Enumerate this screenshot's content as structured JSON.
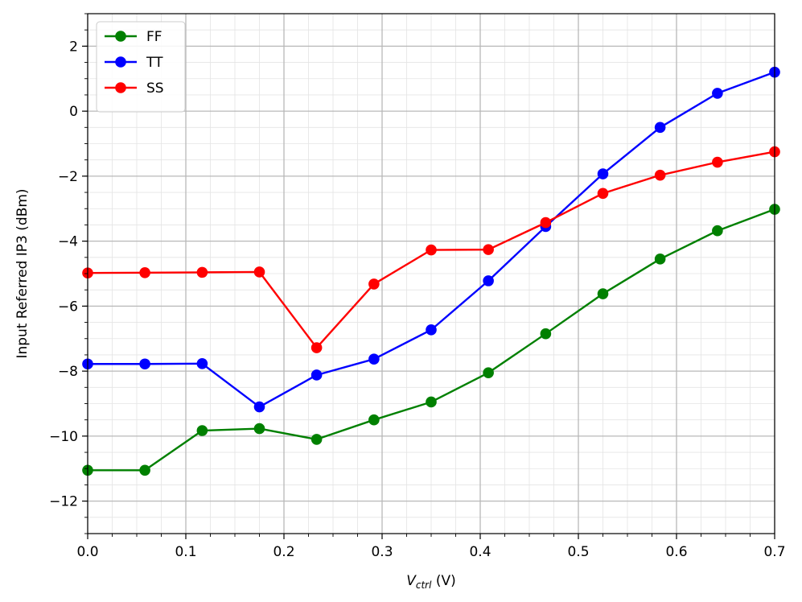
{
  "chart_data": {
    "type": "line",
    "title": "",
    "xlabel_main": "V",
    "xlabel_sub": "ctrl",
    "xlabel_unit": " (V)",
    "ylabel": "Input Referred IP3 (dBm)",
    "xlim": [
      0.0,
      0.7
    ],
    "ylim": [
      -13,
      3
    ],
    "xticks": [
      0.0,
      0.1,
      0.2,
      0.3,
      0.4,
      0.5,
      0.6,
      0.7
    ],
    "xtick_labels": [
      "0.0",
      "0.1",
      "0.2",
      "0.3",
      "0.4",
      "0.5",
      "0.6",
      "0.7"
    ],
    "yticks": [
      -12,
      -10,
      -8,
      -6,
      -4,
      -2,
      0,
      2
    ],
    "ytick_labels": [
      "−12",
      "−10",
      "−8",
      "−6",
      "−4",
      "−2",
      "0",
      "2"
    ],
    "grid": "major and minor",
    "legend_position": "top-left",
    "x": [
      0.0,
      0.0583,
      0.1167,
      0.175,
      0.2333,
      0.2917,
      0.35,
      0.4083,
      0.4667,
      0.525,
      0.5833,
      0.6417,
      0.7
    ],
    "series": [
      {
        "name": "FF",
        "color": "#008000",
        "values": [
          -11.05,
          -11.05,
          -9.83,
          -9.77,
          -10.1,
          -9.5,
          -8.95,
          -8.05,
          -6.85,
          -5.62,
          -4.55,
          -3.68,
          -3.02
        ]
      },
      {
        "name": "TT",
        "color": "#0000ff",
        "values": [
          -7.78,
          -7.78,
          -7.77,
          -9.1,
          -8.12,
          -7.63,
          -6.73,
          -5.22,
          -3.55,
          -1.93,
          -0.5,
          0.55,
          1.2
        ]
      },
      {
        "name": "SS",
        "color": "#ff0000",
        "values": [
          -4.98,
          -4.97,
          -4.96,
          -4.95,
          -7.28,
          -5.32,
          -4.27,
          -4.26,
          -3.43,
          -2.53,
          -1.97,
          -1.57,
          -1.25
        ]
      }
    ]
  }
}
